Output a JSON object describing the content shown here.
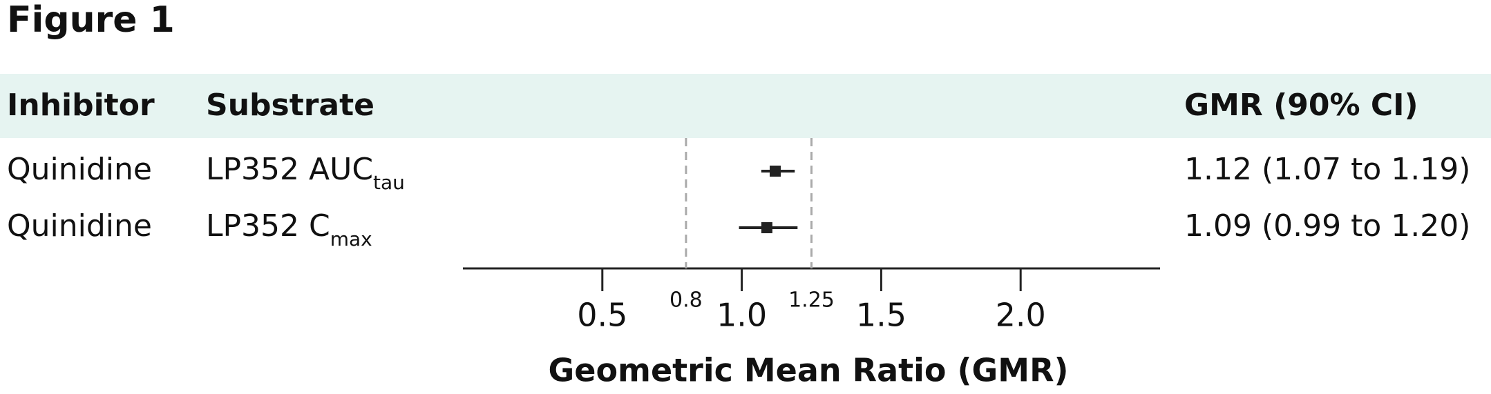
{
  "chart_data": {
    "type": "forest",
    "title": "Figure 1",
    "columns": [
      "Inhibitor",
      "Substrate",
      "GMR (90% CI)"
    ],
    "rows": [
      {
        "inhibitor": "Quinidine",
        "substrate": {
          "main": "LP352 AUC",
          "sub": "tau"
        }
      },
      {
        "inhibitor": "Quinidine",
        "substrate": {
          "main": "LP352 C",
          "sub": "max"
        }
      }
    ],
    "values": [
      1.12,
      1.09
    ],
    "ci_lower": [
      1.07,
      0.99
    ],
    "ci_upper": [
      1.19,
      1.2
    ],
    "value_labels": [
      "1.12 (1.07 to 1.19)",
      "1.09 (0.99 to 1.20)"
    ],
    "color": "#222222",
    "xlim": [
      0,
      2.5
    ],
    "xticks": [
      0.5,
      {
        "value": 1,
        "label": "1.0"
      },
      1.5,
      {
        "value": 2,
        "label": "2.0"
      }
    ],
    "reference_lines": [
      {
        "value": 0.8,
        "label": "0.8"
      },
      {
        "value": 1.25,
        "label": "1.25"
      }
    ],
    "xlabel": "Geometric Mean Ratio (GMR)"
  }
}
